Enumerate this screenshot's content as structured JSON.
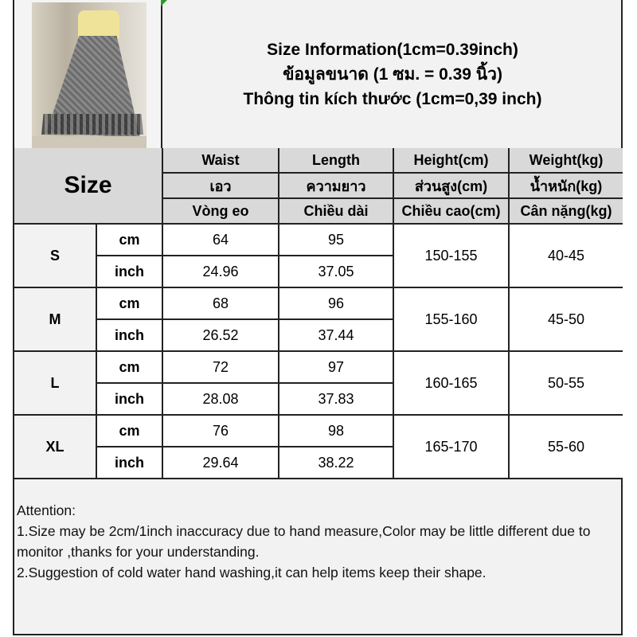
{
  "title_lines": [
    "Size Information(1cm=0.39inch)",
    "ข้อมูลขนาด (1 ซม. = 0.39 นิ้ว)",
    "Thông tin kích thước (1cm=0,39 inch)"
  ],
  "size_header": "Size",
  "columns": [
    {
      "en": "Waist",
      "th": "เอว",
      "vi": "Vòng eo"
    },
    {
      "en": "Length",
      "th": "ความยาว",
      "vi": "Chiều dài"
    },
    {
      "en": "Height(cm)",
      "th": "ส่วนสูง(cm)",
      "vi": "Chiều cao(cm)"
    },
    {
      "en": "Weight(kg)",
      "th": "น้ำหนัก(kg)",
      "vi": "Cân nặng(kg)"
    }
  ],
  "unit_cm": "cm",
  "unit_inch": "inch",
  "rows": [
    {
      "size": "S",
      "waist_cm": "64",
      "length_cm": "95",
      "waist_inch": "24.96",
      "length_inch": "37.05",
      "height": "150-155",
      "weight": "40-45"
    },
    {
      "size": "M",
      "waist_cm": "68",
      "length_cm": "96",
      "waist_inch": "26.52",
      "length_inch": "37.44",
      "height": "155-160",
      "weight": "45-50"
    },
    {
      "size": "L",
      "waist_cm": "72",
      "length_cm": "97",
      "waist_inch": "28.08",
      "length_inch": "37.83",
      "height": "160-165",
      "weight": "50-55"
    },
    {
      "size": "XL",
      "waist_cm": "76",
      "length_cm": "98",
      "waist_inch": "29.64",
      "length_inch": "38.22",
      "height": "165-170",
      "weight": "55-60"
    }
  ],
  "attention": {
    "heading": "Attention:",
    "note1": "1.Size may be 2cm/1inch inaccuracy due to hand measure,Color may be little different due to monitor ,thanks for your understanding.",
    "note2": "2.Suggestion of cold water hand washing,it can help items keep their shape."
  }
}
